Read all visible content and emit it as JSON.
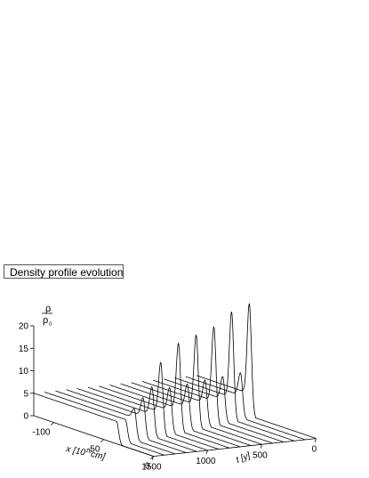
{
  "figure": {
    "title": "Density profile evolution"
  },
  "chart_data": {
    "type": "surface-waterfall",
    "title": "Density profile evolution",
    "ylabel": {
      "numerator": "ρ",
      "denominator": "ρ",
      "denominator_subscript": "0"
    },
    "xlabel": {
      "prefix": "x [10",
      "exponent": "16",
      "suffix": "cm]"
    },
    "tlabel": "t [y]",
    "zlim": [
      0,
      20
    ],
    "z_ticks": [
      0,
      5,
      10,
      15,
      20
    ],
    "x_ticks": [
      -100,
      -50,
      0
    ],
    "xlim": [
      -120,
      0
    ],
    "t_ticks": [
      0,
      500,
      1000,
      1500
    ],
    "tlim": [
      0,
      1500
    ],
    "baseline_density": 5,
    "peak_width": 3,
    "series": [
      {
        "t": 0,
        "peak_x": -37,
        "peak_height": 0
      },
      {
        "t": 100,
        "peak_x": -39,
        "peak_height": 0
      },
      {
        "t": 200,
        "peak_x": -41,
        "peak_height": 2
      },
      {
        "t": 300,
        "peak_x": -43,
        "peak_height": 4
      },
      {
        "t": 400,
        "peak_x": -45,
        "peak_height": 6
      },
      {
        "t": 500,
        "peak_x": -47,
        "peak_height": 11
      },
      {
        "t": 600,
        "peak_x": -49,
        "peak_height": 5
      },
      {
        "t": 700,
        "peak_x": -51,
        "peak_height": 14.5
      },
      {
        "t": 800,
        "peak_x": -53,
        "peak_height": 5
      },
      {
        "t": 900,
        "peak_x": -55,
        "peak_height": 15.5
      },
      {
        "t": 1000,
        "peak_x": -57,
        "peak_height": 5
      },
      {
        "t": 1100,
        "peak_x": -59,
        "peak_height": 16.5
      },
      {
        "t": 1200,
        "peak_x": -61,
        "peak_height": 5
      },
      {
        "t": 1300,
        "peak_x": -63,
        "peak_height": 19
      },
      {
        "t": 1400,
        "peak_x": -65,
        "peak_height": 5
      },
      {
        "t": 1500,
        "peak_x": -67,
        "peak_height": 20
      }
    ]
  }
}
